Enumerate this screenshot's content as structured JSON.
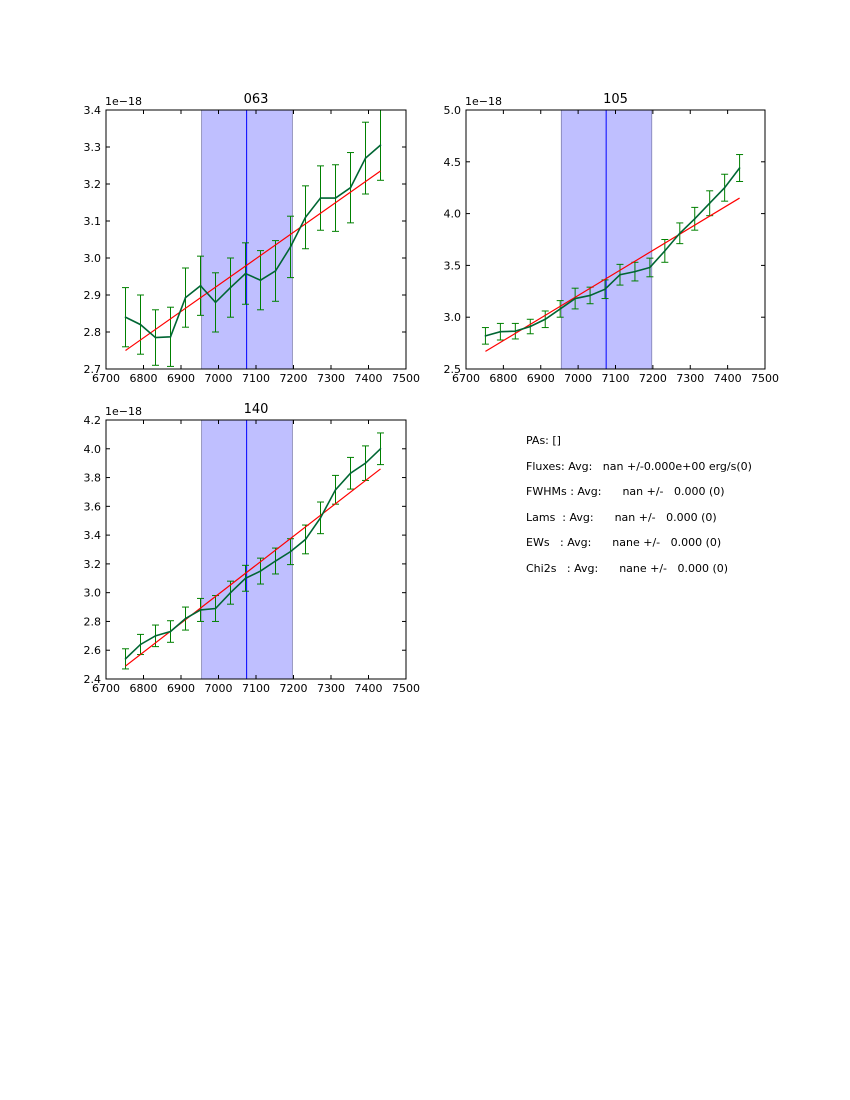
{
  "chart_data": [
    {
      "type": "line",
      "title": "063",
      "offset_label": "1e−18",
      "xlim": [
        6700,
        7500
      ],
      "ylim": [
        2.7,
        3.4
      ],
      "xticks": [
        6700,
        6800,
        6900,
        7000,
        7100,
        7200,
        7300,
        7400,
        7500
      ],
      "yticks": [
        2.7,
        2.8,
        2.9,
        3.0,
        3.1,
        3.2,
        3.3,
        3.4
      ],
      "x": [
        6752,
        6792,
        6832,
        6872,
        6912,
        6952,
        6992,
        7032,
        7072,
        7112,
        7152,
        7192,
        7232,
        7272,
        7312,
        7352,
        7392,
        7432
      ],
      "y": [
        2.84,
        2.82,
        2.785,
        2.787,
        2.893,
        2.925,
        2.88,
        2.92,
        2.958,
        2.94,
        2.965,
        3.03,
        3.11,
        3.162,
        3.162,
        3.19,
        3.27,
        3.305
      ],
      "yerr": [
        0.08,
        0.08,
        0.075,
        0.08,
        0.08,
        0.08,
        0.08,
        0.08,
        0.083,
        0.08,
        0.082,
        0.083,
        0.085,
        0.087,
        0.09,
        0.095,
        0.097,
        0.095
      ],
      "fit": {
        "x": [
          6752,
          7432
        ],
        "y": [
          2.75,
          3.235
        ]
      },
      "band": [
        6955,
        7197
      ],
      "center_line": 7075
    },
    {
      "type": "line",
      "title": "105",
      "offset_label": "1e−18",
      "xlim": [
        6700,
        7500
      ],
      "ylim": [
        2.5,
        5.0
      ],
      "xticks": [
        6700,
        6800,
        6900,
        7000,
        7100,
        7200,
        7300,
        7400,
        7500
      ],
      "yticks": [
        2.5,
        3.0,
        3.5,
        4.0,
        4.5,
        5.0
      ],
      "x": [
        6752,
        6792,
        6832,
        6872,
        6912,
        6952,
        6992,
        7032,
        7072,
        7112,
        7152,
        7192,
        7232,
        7272,
        7312,
        7352,
        7392,
        7432
      ],
      "y": [
        2.82,
        2.86,
        2.865,
        2.91,
        2.98,
        3.08,
        3.18,
        3.21,
        3.27,
        3.41,
        3.44,
        3.48,
        3.64,
        3.81,
        3.95,
        4.1,
        4.25,
        4.44
      ],
      "yerr": [
        0.08,
        0.08,
        0.075,
        0.07,
        0.08,
        0.08,
        0.1,
        0.08,
        0.09,
        0.1,
        0.09,
        0.09,
        0.11,
        0.1,
        0.11,
        0.12,
        0.13,
        0.13
      ],
      "fit": {
        "x": [
          6752,
          7432
        ],
        "y": [
          2.67,
          4.15
        ]
      },
      "band": [
        6955,
        7197
      ],
      "center_line": 7075
    },
    {
      "type": "line",
      "title": "140",
      "offset_label": "1e−18",
      "xlim": [
        6700,
        7500
      ],
      "ylim": [
        2.4,
        4.2
      ],
      "xticks": [
        6700,
        6800,
        6900,
        7000,
        7100,
        7200,
        7300,
        7400,
        7500
      ],
      "yticks": [
        2.4,
        2.6,
        2.8,
        3.0,
        3.2,
        3.4,
        3.6,
        3.8,
        4.0,
        4.2
      ],
      "x": [
        6752,
        6792,
        6832,
        6872,
        6912,
        6952,
        6992,
        7032,
        7072,
        7112,
        7152,
        7192,
        7232,
        7272,
        7312,
        7352,
        7392,
        7432
      ],
      "y": [
        2.54,
        2.64,
        2.7,
        2.73,
        2.82,
        2.88,
        2.89,
        3.0,
        3.1,
        3.15,
        3.22,
        3.285,
        3.37,
        3.52,
        3.715,
        3.83,
        3.9,
        4.0
      ],
      "yerr": [
        0.07,
        0.07,
        0.075,
        0.075,
        0.08,
        0.08,
        0.09,
        0.08,
        0.09,
        0.09,
        0.09,
        0.09,
        0.1,
        0.11,
        0.1,
        0.11,
        0.12,
        0.11
      ],
      "fit": {
        "x": [
          6752,
          7432
        ],
        "y": [
          2.49,
          3.86
        ]
      },
      "band": [
        6955,
        7197
      ],
      "center_line": 7075
    }
  ],
  "stats": [
    "PAs: []",
    "Fluxes: Avg:   nan +/-0.000e+00 erg/s(0)",
    "FWHMs : Avg:      nan +/-   0.000 (0)",
    "Lams  : Avg:      nan +/-   0.000 (0)",
    "EWs   : Avg:      nane +/-   0.000 (0)",
    "Chi2s   : Avg:      nane +/-   0.000 (0)"
  ],
  "colors": {
    "data": "#006633",
    "err": "#008000",
    "fit": "#ff0000",
    "band": "#bfbfff",
    "center": "#0000ff"
  }
}
